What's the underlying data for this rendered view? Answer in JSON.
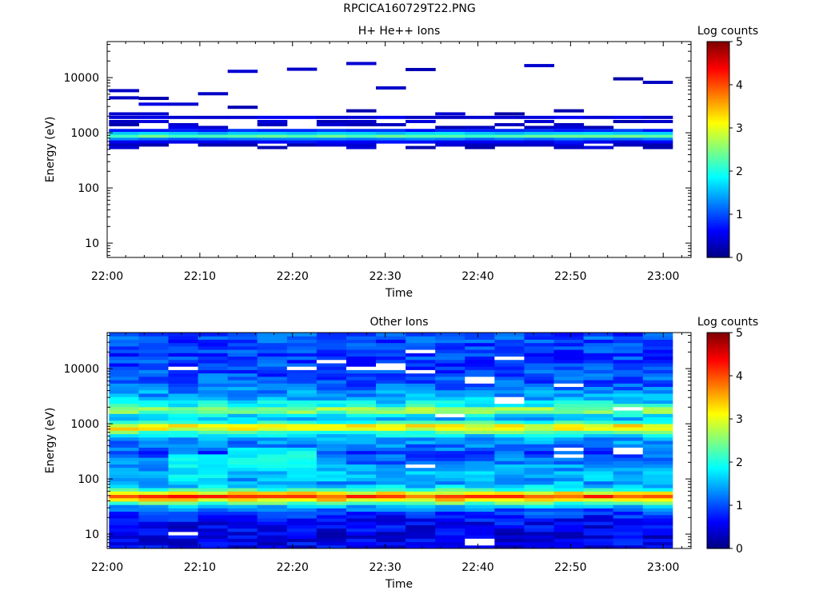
{
  "figure_title": "RPCICA160729T22.PNG",
  "colors": {
    "empty": "#ffffff",
    "axis": "#000000"
  },
  "chart_data": [
    {
      "type": "heatmap",
      "title": "H+ He++ Ions",
      "xlabel": "Time",
      "ylabel": "Energy (eV)",
      "x_ticks": [
        "22:00",
        "22:10",
        "22:20",
        "22:30",
        "22:40",
        "22:50",
        "23:00"
      ],
      "x_range_min": [
        0,
        63
      ],
      "y_scale": "log",
      "y_ticks": [
        "10",
        "100",
        "1000",
        "10000"
      ],
      "y_ticks_values": [
        10,
        100,
        1000,
        10000
      ],
      "y_range": [
        5.5,
        45000
      ],
      "colorbar_label": "Log counts",
      "colorbar_range": [
        0,
        5
      ],
      "colorbar_ticks": [
        "0",
        "1",
        "2",
        "3",
        "4",
        "5"
      ],
      "time_bins_min": [
        0.2,
        3.4,
        6.6,
        9.8,
        13.0,
        16.2,
        19.4,
        22.6,
        25.8,
        29.0,
        32.2,
        35.4,
        38.6,
        41.8,
        45.0,
        48.2,
        51.4,
        54.6,
        57.8,
        61.0
      ],
      "bins": [
        {
          "e": 5800,
          "t": [
            0
          ],
          "v": 0.3
        },
        {
          "e": 4200,
          "t": [
            1
          ],
          "v": 0.3
        },
        {
          "e": 4300,
          "t": [
            0
          ],
          "v": 0.3
        },
        {
          "e": 3300,
          "t": [
            1,
            2
          ],
          "v": 0.35
        },
        {
          "e": 5100,
          "t": [
            3
          ],
          "v": 0.3
        },
        {
          "e": 2900,
          "t": [
            4
          ],
          "v": 0.35
        },
        {
          "e": 13000,
          "t": [
            4
          ],
          "v": 0.3
        },
        {
          "e": 14200,
          "t": [
            6
          ],
          "v": 0.3
        },
        {
          "e": 18000,
          "t": [
            8
          ],
          "v": 0.3
        },
        {
          "e": 6500,
          "t": [
            9
          ],
          "v": 0.3
        },
        {
          "e": 14000,
          "t": [
            10
          ],
          "v": 0.3
        },
        {
          "e": 16500,
          "t": [
            14
          ],
          "v": 0.3
        },
        {
          "e": 9500,
          "t": [
            17
          ],
          "v": 0.3
        },
        {
          "e": 8200,
          "t": [
            18
          ],
          "v": 0.3
        },
        {
          "e": 2500,
          "t": [
            8,
            15
          ],
          "v": 0.3
        },
        {
          "e": 2200,
          "t": [
            0,
            1,
            11,
            13
          ],
          "v": 0.3
        },
        {
          "e": 1900,
          "t": [
            0,
            1,
            2,
            3,
            4,
            5,
            6,
            7,
            8,
            9,
            10,
            11,
            12,
            13,
            14,
            15,
            16,
            17,
            18
          ],
          "v": 0.45
        },
        {
          "e": 1600,
          "t": [
            0,
            1,
            5,
            7,
            8,
            10,
            14,
            17,
            18
          ],
          "v": 0.35
        },
        {
          "e": 1400,
          "t": [
            0,
            2,
            5,
            7,
            8,
            9,
            13,
            15
          ],
          "v": 0.35
        },
        {
          "e": 1250,
          "t": [
            2,
            3,
            11,
            12,
            14,
            15,
            16
          ],
          "v": 0.4
        },
        {
          "e": 1100,
          "t": [
            0,
            1,
            2,
            3,
            4,
            5,
            6,
            7,
            8,
            9,
            10,
            11,
            12,
            13,
            14,
            15,
            16,
            17,
            18
          ],
          "v": 0.8
        },
        {
          "e": 970,
          "t": [
            0,
            1,
            2,
            3,
            4,
            5,
            6,
            7,
            8,
            9,
            10,
            11,
            12,
            13,
            14,
            15,
            16,
            17,
            18
          ],
          "v": 1.6
        },
        {
          "e": 860,
          "t": [
            0,
            1,
            2,
            3,
            4,
            5,
            6,
            7,
            8,
            9,
            10,
            11,
            12,
            13,
            14,
            15,
            16,
            17,
            18
          ],
          "v": 2.3
        },
        {
          "e": 760,
          "t": [
            0,
            1,
            2,
            3,
            4,
            5,
            6,
            7,
            8,
            9,
            10,
            11,
            12,
            13,
            14,
            15,
            16,
            17,
            18
          ],
          "v": 1.2
        },
        {
          "e": 680,
          "t": [
            0,
            1,
            2,
            3,
            4,
            5,
            6,
            7,
            8,
            9,
            10,
            11,
            12,
            13,
            14,
            15,
            16,
            17,
            18
          ],
          "v": 0.6
        },
        {
          "e": 600,
          "t": [
            0,
            1,
            3,
            4,
            6,
            7,
            8,
            11,
            12,
            13,
            14,
            15,
            17,
            18
          ],
          "v": 0.35
        },
        {
          "e": 540,
          "t": [
            0,
            5,
            8,
            10,
            12,
            15,
            16,
            18
          ],
          "v": 0.3
        }
      ]
    },
    {
      "type": "heatmap",
      "title": "Other Ions",
      "xlabel": "Time",
      "ylabel": "Energy (eV)",
      "x_ticks": [
        "22:00",
        "22:10",
        "22:20",
        "22:30",
        "22:40",
        "22:50",
        "23:00"
      ],
      "x_range_min": [
        0,
        63
      ],
      "y_scale": "log",
      "y_ticks": [
        "10",
        "100",
        "1000",
        "10000"
      ],
      "y_ticks_values": [
        10,
        100,
        1000,
        10000
      ],
      "y_range": [
        5.5,
        45000
      ],
      "colorbar_label": "Log counts",
      "colorbar_range": [
        0,
        5
      ],
      "colorbar_ticks": [
        "0",
        "1",
        "2",
        "3",
        "4",
        "5"
      ],
      "time_bins_min": [
        0.2,
        3.4,
        6.6,
        9.8,
        13.0,
        16.2,
        19.4,
        22.6,
        25.8,
        29.0,
        32.2,
        35.4,
        38.6,
        41.8,
        45.0,
        48.2,
        51.4,
        54.6,
        57.8,
        61.0
      ],
      "energy_profile": [
        {
          "e": 40000,
          "v": 1.0
        },
        {
          "e": 15000,
          "v": 0.9
        },
        {
          "e": 5000,
          "v": 1.1
        },
        {
          "e": 3000,
          "v": 1.5
        },
        {
          "e": 2200,
          "v": 1.9
        },
        {
          "e": 1800,
          "v": 2.9
        },
        {
          "e": 1500,
          "v": 1.9
        },
        {
          "e": 1200,
          "v": 1.5
        },
        {
          "e": 1000,
          "v": 2.6
        },
        {
          "e": 880,
          "v": 3.6
        },
        {
          "e": 750,
          "v": 2.5
        },
        {
          "e": 550,
          "v": 1.4
        },
        {
          "e": 300,
          "v": 1.0
        },
        {
          "e": 200,
          "v": 1.2
        },
        {
          "e": 130,
          "v": 1.6
        },
        {
          "e": 90,
          "v": 1.4
        },
        {
          "e": 70,
          "v": 1.7
        },
        {
          "e": 58,
          "v": 2.9
        },
        {
          "e": 50,
          "v": 4.1
        },
        {
          "e": 44,
          "v": 3.5
        },
        {
          "e": 38,
          "v": 2.5
        },
        {
          "e": 30,
          "v": 1.2
        },
        {
          "e": 20,
          "v": 0.7
        },
        {
          "e": 10,
          "v": 0.5
        },
        {
          "e": 5.5,
          "v": 0.6
        }
      ],
      "noise_amplitude": 0.35,
      "enhanced_cells": [
        {
          "t": [
            4,
            6
          ],
          "e": [
            150,
            350
          ],
          "v": 1.9
        },
        {
          "t": [
            2,
            3
          ],
          "e": [
            90,
            300
          ],
          "v": 1.8
        }
      ],
      "empty_cells": [
        {
          "t": 2,
          "e": 9900
        },
        {
          "t": 6,
          "e": 9900
        },
        {
          "t": 8,
          "e": 9900
        },
        {
          "t": 9,
          "e": 11000
        },
        {
          "t": 10,
          "e": 9000
        },
        {
          "t": 10,
          "e": 20000
        },
        {
          "t": 12,
          "e": 6300
        },
        {
          "t": 13,
          "e": 16000
        },
        {
          "t": 15,
          "e": 4900
        },
        {
          "t": 7,
          "e": 14000
        },
        {
          "t": 15,
          "e": 350
        },
        {
          "t": 17,
          "e": 330
        },
        {
          "t": 17,
          "e": 1900
        },
        {
          "t": 13,
          "e": 2700
        },
        {
          "t": 15,
          "e": 260
        },
        {
          "t": 11,
          "e": 1500
        },
        {
          "t": 10,
          "e": 170
        },
        {
          "t": 2,
          "e": 10
        },
        {
          "t": 12,
          "e": 8
        },
        {
          "t": 12,
          "e": 6.5
        }
      ],
      "missing_time_range_min": [
        61.0,
        63
      ]
    }
  ]
}
